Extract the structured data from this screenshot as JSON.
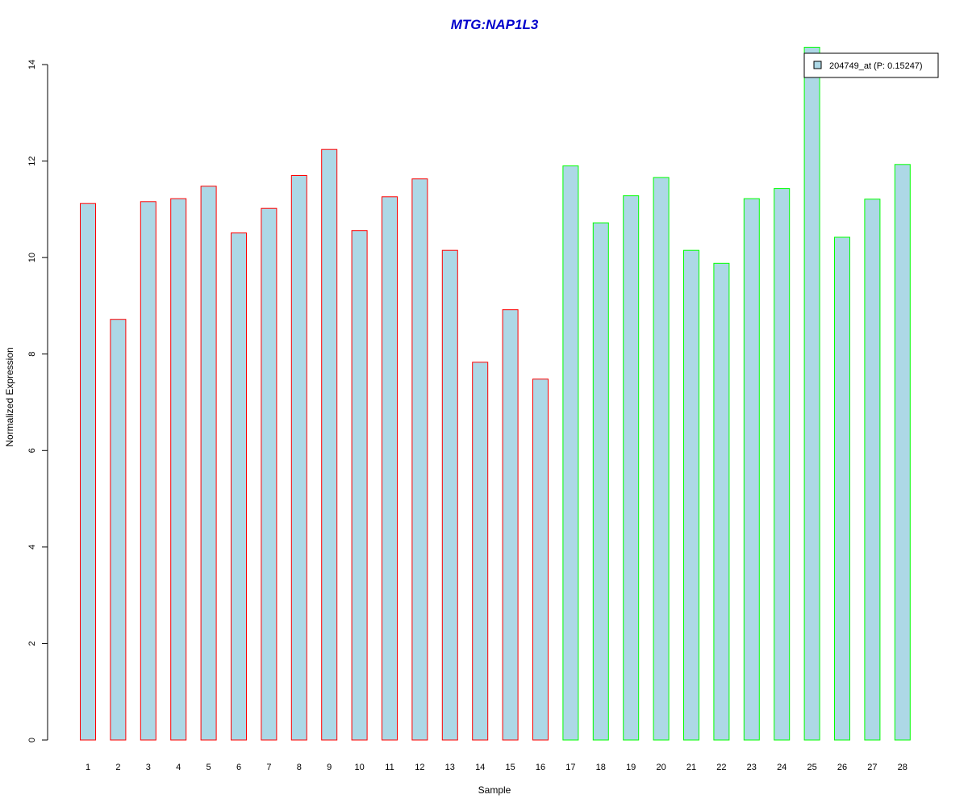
{
  "chart_data": {
    "type": "bar",
    "title": "MTG:NAP1L3",
    "xlabel": "Sample",
    "ylabel": "Normalized Expression",
    "ylim": [
      0,
      14
    ],
    "yticks": [
      "0",
      "2",
      "4",
      "6",
      "8",
      "10",
      "12",
      "14"
    ],
    "categories": [
      "1",
      "2",
      "3",
      "4",
      "5",
      "6",
      "7",
      "8",
      "9",
      "10",
      "11",
      "12",
      "13",
      "14",
      "15",
      "16",
      "17",
      "18",
      "19",
      "20",
      "21",
      "22",
      "23",
      "24",
      "25",
      "26",
      "27",
      "28"
    ],
    "series": [
      {
        "name": "204749_at (P: 0.15247)",
        "values": [
          11.12,
          8.72,
          11.16,
          11.22,
          11.48,
          10.51,
          11.02,
          11.7,
          12.24,
          10.56,
          11.26,
          11.63,
          10.15,
          7.83,
          8.92,
          7.48,
          11.9,
          10.72,
          11.28,
          11.66,
          10.15,
          9.88,
          11.22,
          11.43,
          14.36,
          10.42,
          11.21,
          11.93
        ]
      }
    ],
    "bar_fill": "#add8e6",
    "group_colors": [
      "#ff0000",
      "#00ff00"
    ],
    "group_sizes": [
      16,
      12
    ],
    "title_color": "#0000cc",
    "legend_position": "top-right",
    "grid": false
  }
}
